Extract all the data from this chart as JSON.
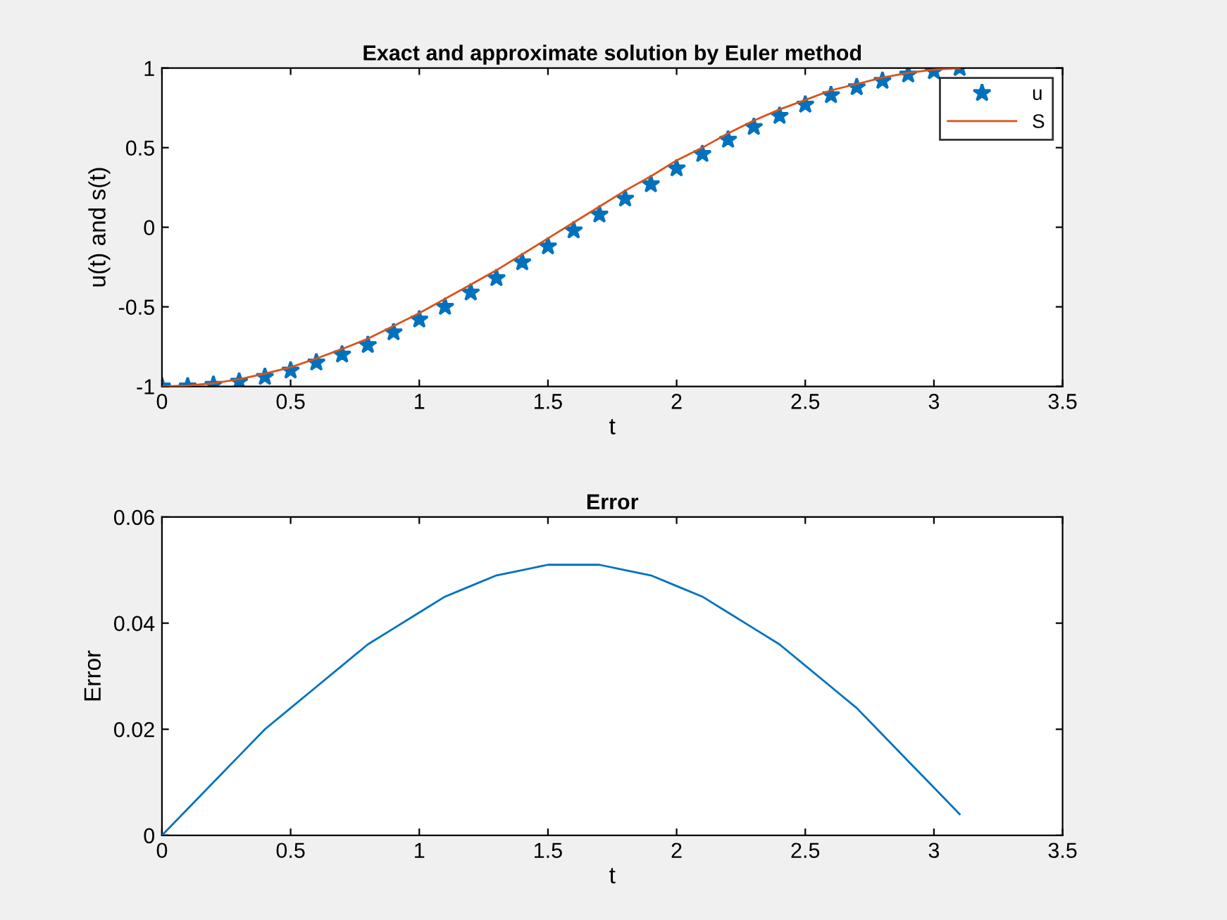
{
  "chart_data": [
    {
      "type": "line",
      "title": "Exact and approximate solution by Euler method",
      "xlabel": "t",
      "ylabel": "u(t) and s(t)",
      "xlim": [
        0,
        3.5
      ],
      "xticks": [
        0,
        0.5,
        1,
        1.5,
        2,
        2.5,
        3,
        3.5
      ],
      "ylim": [
        -1,
        1
      ],
      "yticks": [
        -1,
        -0.5,
        0,
        0.5,
        1
      ],
      "grid": false,
      "legend": "top right",
      "x": [
        0,
        0.1,
        0.2,
        0.3,
        0.4,
        0.5,
        0.6,
        0.7,
        0.8,
        0.9,
        1.0,
        1.1,
        1.2,
        1.3,
        1.4,
        1.5,
        1.6,
        1.7,
        1.8,
        1.9,
        2.0,
        2.1,
        2.2,
        2.3,
        2.4,
        2.5,
        2.6,
        2.7,
        2.8,
        2.9,
        3.0,
        3.1
      ],
      "series": [
        {
          "name": "u",
          "type": "scatter",
          "marker": "star",
          "color": "#0072bd",
          "values": [
            -1,
            -1.0,
            -0.99,
            -0.97,
            -0.94,
            -0.9,
            -0.85,
            -0.8,
            -0.74,
            -0.66,
            -0.58,
            -0.5,
            -0.41,
            -0.32,
            -0.22,
            -0.12,
            -0.02,
            0.08,
            0.18,
            0.27,
            0.37,
            0.46,
            0.55,
            0.63,
            0.7,
            0.77,
            0.83,
            0.88,
            0.92,
            0.96,
            0.98,
            1.0
          ]
        },
        {
          "name": "S",
          "type": "line",
          "line_style": "solid",
          "color": "#d95319",
          "values": [
            -1,
            -0.995,
            -0.98,
            -0.955,
            -0.92,
            -0.88,
            -0.825,
            -0.765,
            -0.7,
            -0.62,
            -0.54,
            -0.45,
            -0.36,
            -0.27,
            -0.17,
            -0.07,
            0.03,
            0.13,
            0.23,
            0.32,
            0.42,
            0.5,
            0.59,
            0.67,
            0.74,
            0.8,
            0.86,
            0.9,
            0.94,
            0.97,
            0.99,
            1.0
          ]
        }
      ]
    },
    {
      "type": "line",
      "title": "Error",
      "xlabel": "t",
      "ylabel": "Error",
      "xlim": [
        0,
        3.5
      ],
      "xticks": [
        0,
        0.5,
        1,
        1.5,
        2,
        2.5,
        3,
        3.5
      ],
      "ylim": [
        0,
        0.06
      ],
      "yticks": [
        0,
        {
          "value": 0.02,
          "label": "0.02"
        },
        {
          "value": 0.04,
          "label": "0.04"
        },
        {
          "value": 0.06,
          "label": "0.06"
        }
      ],
      "grid": false,
      "legend": false,
      "x": [
        0,
        0.1,
        0.2,
        0.3,
        0.4,
        0.5,
        0.6,
        0.7,
        0.8,
        0.9,
        1.0,
        1.1,
        1.2,
        1.3,
        1.4,
        1.5,
        1.6,
        1.7,
        1.8,
        1.9,
        2.0,
        2.1,
        2.2,
        2.3,
        2.4,
        2.5,
        2.6,
        2.7,
        2.8,
        2.9,
        3.0,
        3.1
      ],
      "series": [
        {
          "color": "#0072bd",
          "line_style": "solid",
          "values": [
            0,
            0.005,
            0.01,
            0.015,
            0.02,
            0.024,
            0.028,
            0.032,
            0.036,
            0.039,
            0.042,
            0.045,
            0.047,
            0.049,
            0.05,
            0.051,
            0.051,
            0.051,
            0.05,
            0.049,
            0.047,
            0.045,
            0.042,
            0.039,
            0.036,
            0.032,
            0.028,
            0.024,
            0.019,
            0.014,
            0.009,
            0.004
          ]
        }
      ]
    }
  ]
}
